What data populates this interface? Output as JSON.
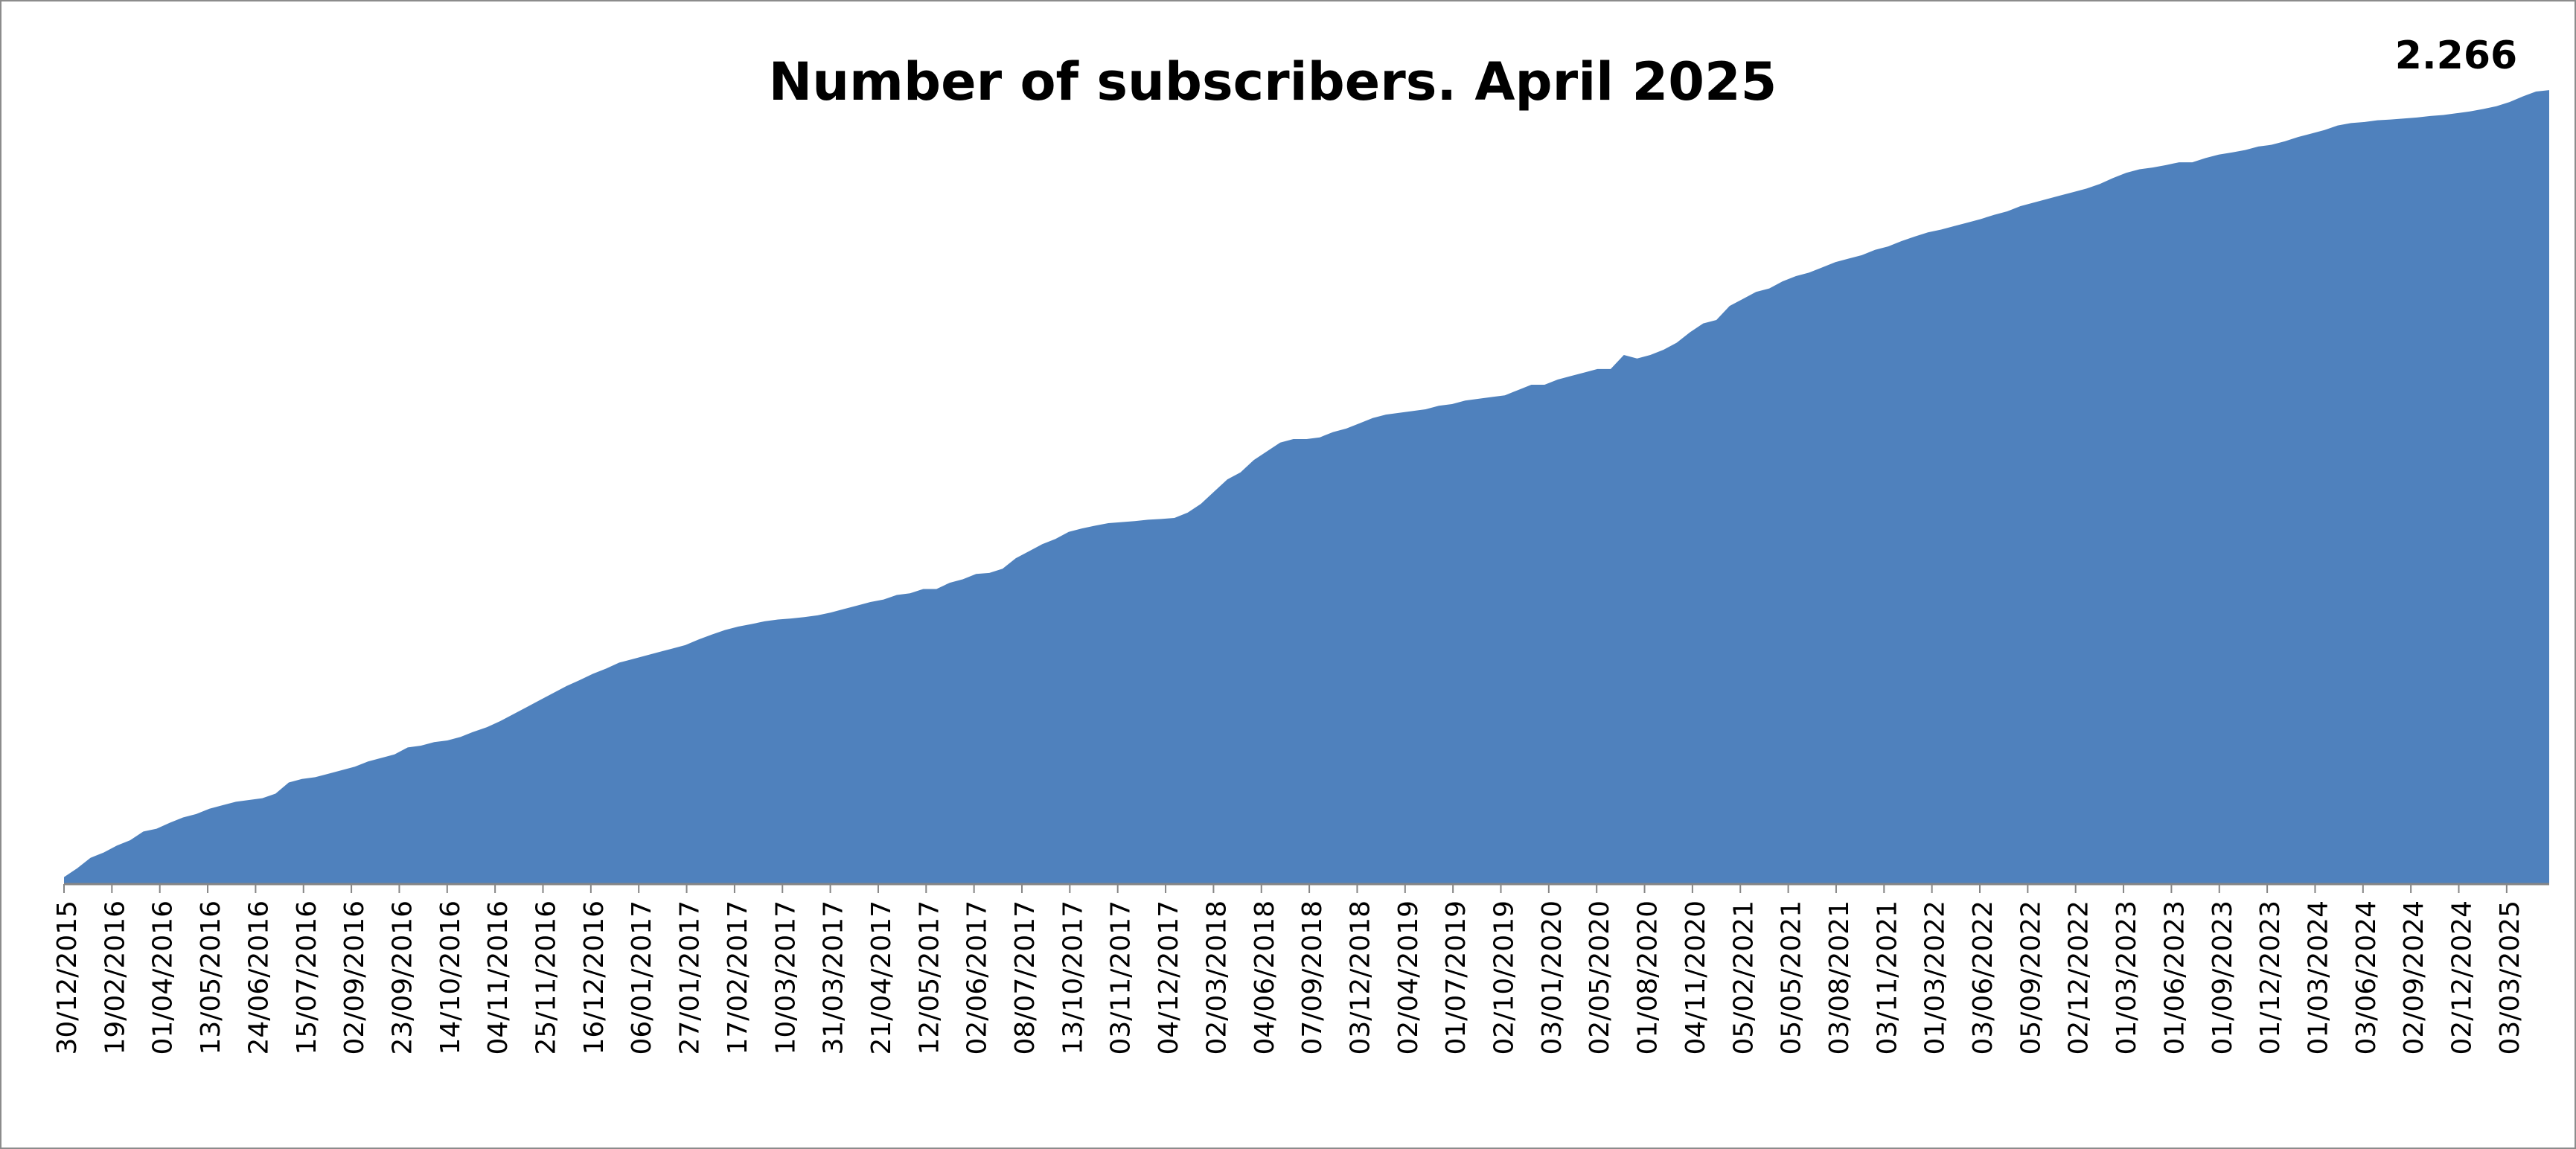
{
  "chart_data": {
    "type": "area",
    "title": "Number of subscribers. April 2025",
    "xlabel": "",
    "ylabel": "",
    "last_value_label": "2.266",
    "grid": false,
    "legend": "none",
    "area_color": "#4F81BD",
    "ylim": [
      0,
      2400
    ],
    "tick_labels": [
      "30/12/2015",
      "19/02/2016",
      "01/04/2016",
      "13/05/2016",
      "24/06/2016",
      "15/07/2016",
      "02/09/2016",
      "23/09/2016",
      "14/10/2016",
      "04/11/2016",
      "25/11/2016",
      "16/12/2016",
      "06/01/2017",
      "27/01/2017",
      "17/02/2017",
      "10/03/2017",
      "31/03/2017",
      "21/04/2017",
      "12/05/2017",
      "02/06/2017",
      "08/07/2017",
      "13/10/2017",
      "03/11/2017",
      "04/12/2017",
      "02/03/2018",
      "04/06/2018",
      "07/09/2018",
      "03/12/2018",
      "02/04/2019",
      "01/07/2019",
      "02/10/2019",
      "03/01/2020",
      "02/05/2020",
      "01/08/2020",
      "04/11/2020",
      "05/02/2021",
      "05/05/2021",
      "03/08/2021",
      "03/11/2021",
      "01/03/2022",
      "03/06/2022",
      "05/09/2022",
      "02/12/2022",
      "01/03/2023",
      "01/06/2023",
      "01/09/2023",
      "01/12/2023",
      "01/03/2024",
      "03/06/2024",
      "02/09/2024",
      "02/12/2024",
      "03/03/2025"
    ],
    "values": [
      20,
      45,
      75,
      90,
      110,
      125,
      150,
      158,
      175,
      190,
      200,
      215,
      225,
      235,
      240,
      245,
      258,
      290,
      300,
      305,
      315,
      325,
      335,
      350,
      360,
      370,
      390,
      395,
      405,
      410,
      420,
      435,
      448,
      465,
      485,
      505,
      525,
      545,
      565,
      582,
      600,
      615,
      632,
      642,
      652,
      662,
      672,
      682,
      698,
      712,
      725,
      735,
      742,
      750,
      755,
      758,
      762,
      767,
      775,
      785,
      795,
      805,
      812,
      825,
      830,
      842,
      842,
      860,
      870,
      885,
      888,
      900,
      930,
      950,
      970,
      985,
      1005,
      1015,
      1023,
      1030,
      1033,
      1036,
      1040,
      1042,
      1045,
      1060,
      1085,
      1120,
      1155,
      1175,
      1210,
      1235,
      1260,
      1270,
      1270,
      1275,
      1290,
      1300,
      1315,
      1330,
      1340,
      1345,
      1350,
      1355,
      1365,
      1370,
      1380,
      1385,
      1390,
      1395,
      1410,
      1425,
      1425,
      1440,
      1450,
      1460,
      1470,
      1470,
      1510,
      1500,
      1510,
      1525,
      1545,
      1575,
      1600,
      1610,
      1650,
      1670,
      1690,
      1700,
      1720,
      1735,
      1745,
      1760,
      1775,
      1785,
      1795,
      1810,
      1820,
      1835,
      1848,
      1860,
      1868,
      1878,
      1888,
      1898,
      1910,
      1920,
      1935,
      1945,
      1955,
      1965,
      1975,
      1985,
      1998,
      2015,
      2030,
      2040,
      2045,
      2052,
      2060,
      2060,
      2072,
      2082,
      2088,
      2095,
      2105,
      2110,
      2120,
      2132,
      2142,
      2152,
      2165,
      2172,
      2175,
      2180,
      2182,
      2185,
      2188,
      2192,
      2195,
      2200,
      2205,
      2212,
      2220,
      2232,
      2248,
      2262,
      2266
    ]
  }
}
